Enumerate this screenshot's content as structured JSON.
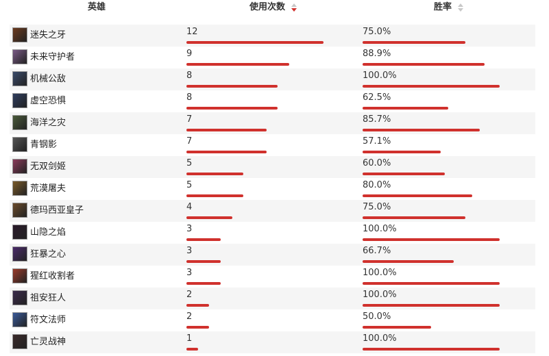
{
  "header": {
    "hero_label": "英雄",
    "uses_label": "使用次数",
    "winrate_label": "胜率"
  },
  "colors": {
    "bar": "#d0312d",
    "stripe": "#f5f5f5"
  },
  "max_uses": 12,
  "rows": [
    {
      "name": "迷失之牙",
      "uses": "12",
      "uses_value": 12,
      "winrate": "75.0%",
      "winrate_value": 0.75,
      "avatar_color": "#6b3a1e",
      "avatar_icon": "champion-portrait"
    },
    {
      "name": "未来守护者",
      "uses": "9",
      "uses_value": 9,
      "winrate": "88.9%",
      "winrate_value": 0.889,
      "avatar_color": "#7a5a86",
      "avatar_icon": "champion-portrait"
    },
    {
      "name": "机械公敌",
      "uses": "8",
      "uses_value": 8,
      "winrate": "100.0%",
      "winrate_value": 1.0,
      "avatar_color": "#3a4a6a",
      "avatar_icon": "champion-portrait"
    },
    {
      "name": "虚空恐惧",
      "uses": "8",
      "uses_value": 8,
      "winrate": "62.5%",
      "winrate_value": 0.625,
      "avatar_color": "#2f3d5e",
      "avatar_icon": "champion-portrait"
    },
    {
      "name": "海洋之灾",
      "uses": "7",
      "uses_value": 7,
      "winrate": "85.7%",
      "winrate_value": 0.857,
      "avatar_color": "#4a5a3a",
      "avatar_icon": "champion-portrait"
    },
    {
      "name": "青钢影",
      "uses": "7",
      "uses_value": 7,
      "winrate": "57.1%",
      "winrate_value": 0.571,
      "avatar_color": "#555555",
      "avatar_icon": "champion-portrait"
    },
    {
      "name": "无双剑姬",
      "uses": "5",
      "uses_value": 5,
      "winrate": "60.0%",
      "winrate_value": 0.6,
      "avatar_color": "#8a3a5a",
      "avatar_icon": "champion-portrait"
    },
    {
      "name": "荒漠屠夫",
      "uses": "5",
      "uses_value": 5,
      "winrate": "80.0%",
      "winrate_value": 0.8,
      "avatar_color": "#7a5a2a",
      "avatar_icon": "champion-portrait"
    },
    {
      "name": "德玛西亚皇子",
      "uses": "4",
      "uses_value": 4,
      "winrate": "75.0%",
      "winrate_value": 0.75,
      "avatar_color": "#6a4a2a",
      "avatar_icon": "champion-portrait"
    },
    {
      "name": "山隐之焰",
      "uses": "3",
      "uses_value": 3,
      "winrate": "100.0%",
      "winrate_value": 1.0,
      "avatar_color": "#2a1a2a",
      "avatar_icon": "champion-portrait"
    },
    {
      "name": "狂暴之心",
      "uses": "3",
      "uses_value": 3,
      "winrate": "66.7%",
      "winrate_value": 0.667,
      "avatar_color": "#4a2a6a",
      "avatar_icon": "champion-portrait"
    },
    {
      "name": "猩红收割者",
      "uses": "3",
      "uses_value": 3,
      "winrate": "100.0%",
      "winrate_value": 1.0,
      "avatar_color": "#9a3a2a",
      "avatar_icon": "champion-portrait"
    },
    {
      "name": "祖安狂人",
      "uses": "2",
      "uses_value": 2,
      "winrate": "100.0%",
      "winrate_value": 1.0,
      "avatar_color": "#3a2a4a",
      "avatar_icon": "champion-portrait"
    },
    {
      "name": "符文法师",
      "uses": "2",
      "uses_value": 2,
      "winrate": "50.0%",
      "winrate_value": 0.5,
      "avatar_color": "#3a5a9a",
      "avatar_icon": "champion-portrait"
    },
    {
      "name": "亡灵战神",
      "uses": "1",
      "uses_value": 1,
      "winrate": "100.0%",
      "winrate_value": 1.0,
      "avatar_color": "#3a2a2a",
      "avatar_icon": "champion-portrait"
    }
  ]
}
